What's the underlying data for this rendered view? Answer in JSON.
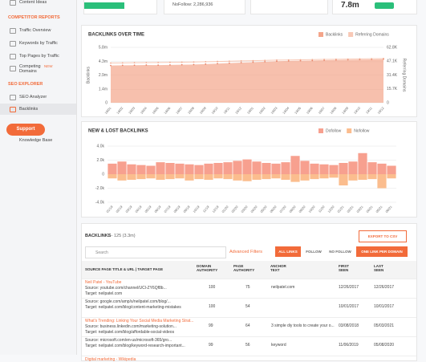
{
  "sidebar": {
    "top_item": "Content Ideas",
    "sections": [
      {
        "title": "COMPETITOR REPORTS",
        "items": [
          "Traffic Overview",
          "Keywords by Traffic",
          "Top Pages by Traffic",
          "Competing Domains"
        ]
      },
      {
        "title": "SEO EXPLORER",
        "items": [
          "SEO Analyzer",
          "Backlinks"
        ]
      }
    ],
    "badge": "NEW",
    "support": "Support",
    "knowledge": "Knowledge Base"
  },
  "summary": {
    "nofollow": "NoFollow: 2,286,936",
    "total": "7.8m"
  },
  "backlinks_chart": {
    "type": "area",
    "title": "BACKLINKS OVER TIME",
    "y_label": "Backlinks",
    "y2_label": "Referring Domains",
    "categories": [
      "18/01",
      "18/02",
      "18/03",
      "18/04",
      "18/05",
      "18/06",
      "18/07",
      "18/08",
      "18/09",
      "18/10",
      "18/11",
      "18/12",
      "19/01",
      "19/02",
      "19/03",
      "19/04",
      "19/05",
      "19/06",
      "19/07",
      "19/08",
      "19/09",
      "19/10",
      "19/11",
      "19/12"
    ],
    "series": [
      {
        "name": "Backlinks",
        "color": "#f4a58a",
        "values": [
          3900000,
          3920000,
          3930000,
          3950000,
          3940000,
          3960000,
          3980000,
          4000000,
          4050000,
          4100000,
          4150000,
          4200000,
          4250000,
          4300000,
          4350000,
          4380000,
          4400000,
          4420000,
          4450000,
          4480000,
          4500000,
          4520000,
          4540000,
          4560000
        ]
      },
      {
        "name": "Referring Domains",
        "color": "#f8c9b6",
        "axis": "y2",
        "values": [
          45000,
          45200,
          45400,
          45500,
          45600,
          45800,
          46000,
          46200,
          46500,
          46800,
          47100,
          47400,
          47700,
          48000,
          48300,
          48500,
          48700,
          48900,
          49100,
          49300,
          49500,
          49700,
          49900,
          50100
        ]
      }
    ],
    "ylim": [
      0,
      5800000
    ],
    "yticks": [
      0,
      {
        "value": 1400000,
        "label": "1.4m"
      },
      {
        "value": 2900000,
        "label": "2.9m"
      },
      {
        "value": 4300000,
        "label": "4.3m"
      },
      {
        "value": 5800000,
        "label": "5.8m"
      }
    ],
    "y2lim": [
      0,
      62800
    ],
    "y2ticks": [
      0,
      {
        "value": 15700,
        "label": "15.7K"
      },
      {
        "value": 31400,
        "label": "31.4K"
      },
      {
        "value": 47100,
        "label": "47.1K"
      },
      {
        "value": 62800,
        "label": "62.8K"
      }
    ],
    "grid": true
  },
  "new_lost_chart": {
    "type": "bar",
    "title": "NEW & LOST BACKLINKS",
    "categories": [
      "01/19",
      "02/19",
      "03/19",
      "04/19",
      "05/19",
      "06/19",
      "07/19",
      "08/19",
      "09/19",
      "10/19",
      "11/19",
      "12/19",
      "01/20",
      "02/20",
      "03/20",
      "04/20",
      "05/20",
      "06/20",
      "07/20",
      "08/20",
      "09/20",
      "10/20",
      "11/20",
      "12/20",
      "01/21",
      "02/21",
      "03/21",
      "04/21",
      "05/21",
      "06/21"
    ],
    "series": [
      {
        "name": "Dofollow",
        "color": "#f7a08f",
        "values": [
          1500,
          1800,
          1400,
          1300,
          1200,
          1700,
          1600,
          1500,
          1400,
          1300,
          1500,
          1600,
          1700,
          1900,
          2100,
          1800,
          1600,
          1500,
          1700,
          2600,
          1900,
          1500,
          1400,
          1300,
          1600,
          1800,
          3000,
          1700,
          1500,
          1200
        ]
      },
      {
        "name": "Nofollow",
        "color": "#fbbd8e",
        "values": [
          -600,
          -900,
          -800,
          -700,
          -600,
          -800,
          -700,
          -600,
          -900,
          -700,
          -800,
          -600,
          -700,
          -900,
          -1000,
          -800,
          -700,
          -600,
          -800,
          -1100,
          -900,
          -700,
          -600,
          -500,
          -1600,
          -900,
          -800,
          -700,
          -2000,
          -600
        ]
      }
    ],
    "ylim": [
      -4000,
      4000
    ],
    "yticks": [
      {
        "value": -4000,
        "label": "-4.0k"
      },
      {
        "value": -2000,
        "label": "-2.0k"
      },
      0,
      {
        "value": 2000,
        "label": "2.0k"
      },
      {
        "value": 4000,
        "label": "4.0k"
      }
    ],
    "grid": true
  },
  "table": {
    "title": "BACKLINKS",
    "range": "1 - 125 (3.3m)",
    "export": "EXPORT TO CSV",
    "search": "Search",
    "filters": "Advanced Filters",
    "tabs": [
      "ALL LINKS",
      "FOLLOW",
      "NO FOLLOW"
    ],
    "one_link": "ONE LINK PER DOMAIN",
    "headers": [
      "SOURCE PAGE TITLE & URL | TARGET PAGE",
      "DOMAIN AUTHORITY",
      "PAGE AUTHORITY",
      "ANCHOR TEXT",
      "FIRST SEEN",
      "LAST SEEN"
    ],
    "rows": [
      {
        "title": "Neil Patel - YouTube",
        "source": "Source: youtube.com/channel/UCl-ZY6Qf8b...",
        "target": "Target: neilpatel.com",
        "da": "100",
        "pa": "75",
        "anchor": "neilpatel.com",
        "first": "12/26/2017",
        "last": "12/26/2017"
      },
      {
        "source": "Source: google.com/amp/s/neilpatel.com/blog/...",
        "target": "Target: neilpatel.com/blog/content-marketing-mistakes",
        "da": "100",
        "pa": "54",
        "first": "10/01/2017",
        "last": "10/01/2017"
      },
      {
        "title": "What's Trending: Linking Your Social Media Marketing Strat...",
        "source": "Source: business.linkedin.com/marketing-solution...",
        "target": "Target: neilpatel.com/blog/affordable-social-videos",
        "da": "99",
        "pa": "64",
        "anchor": "3 simple diy tools to create your o...",
        "first": "03/08/2018",
        "last": "05/03/2021"
      },
      {
        "source": "Source: microsoft.com/en-us/microsoft-365/gro...",
        "target": "Target: neilpatel.com/blog/keyword-research-important...",
        "da": "99",
        "pa": "56",
        "anchor": "keyword",
        "first": "11/06/2019",
        "last": "05/08/2020"
      },
      {
        "title": "Digital marketing - Wikipedia"
      }
    ]
  }
}
